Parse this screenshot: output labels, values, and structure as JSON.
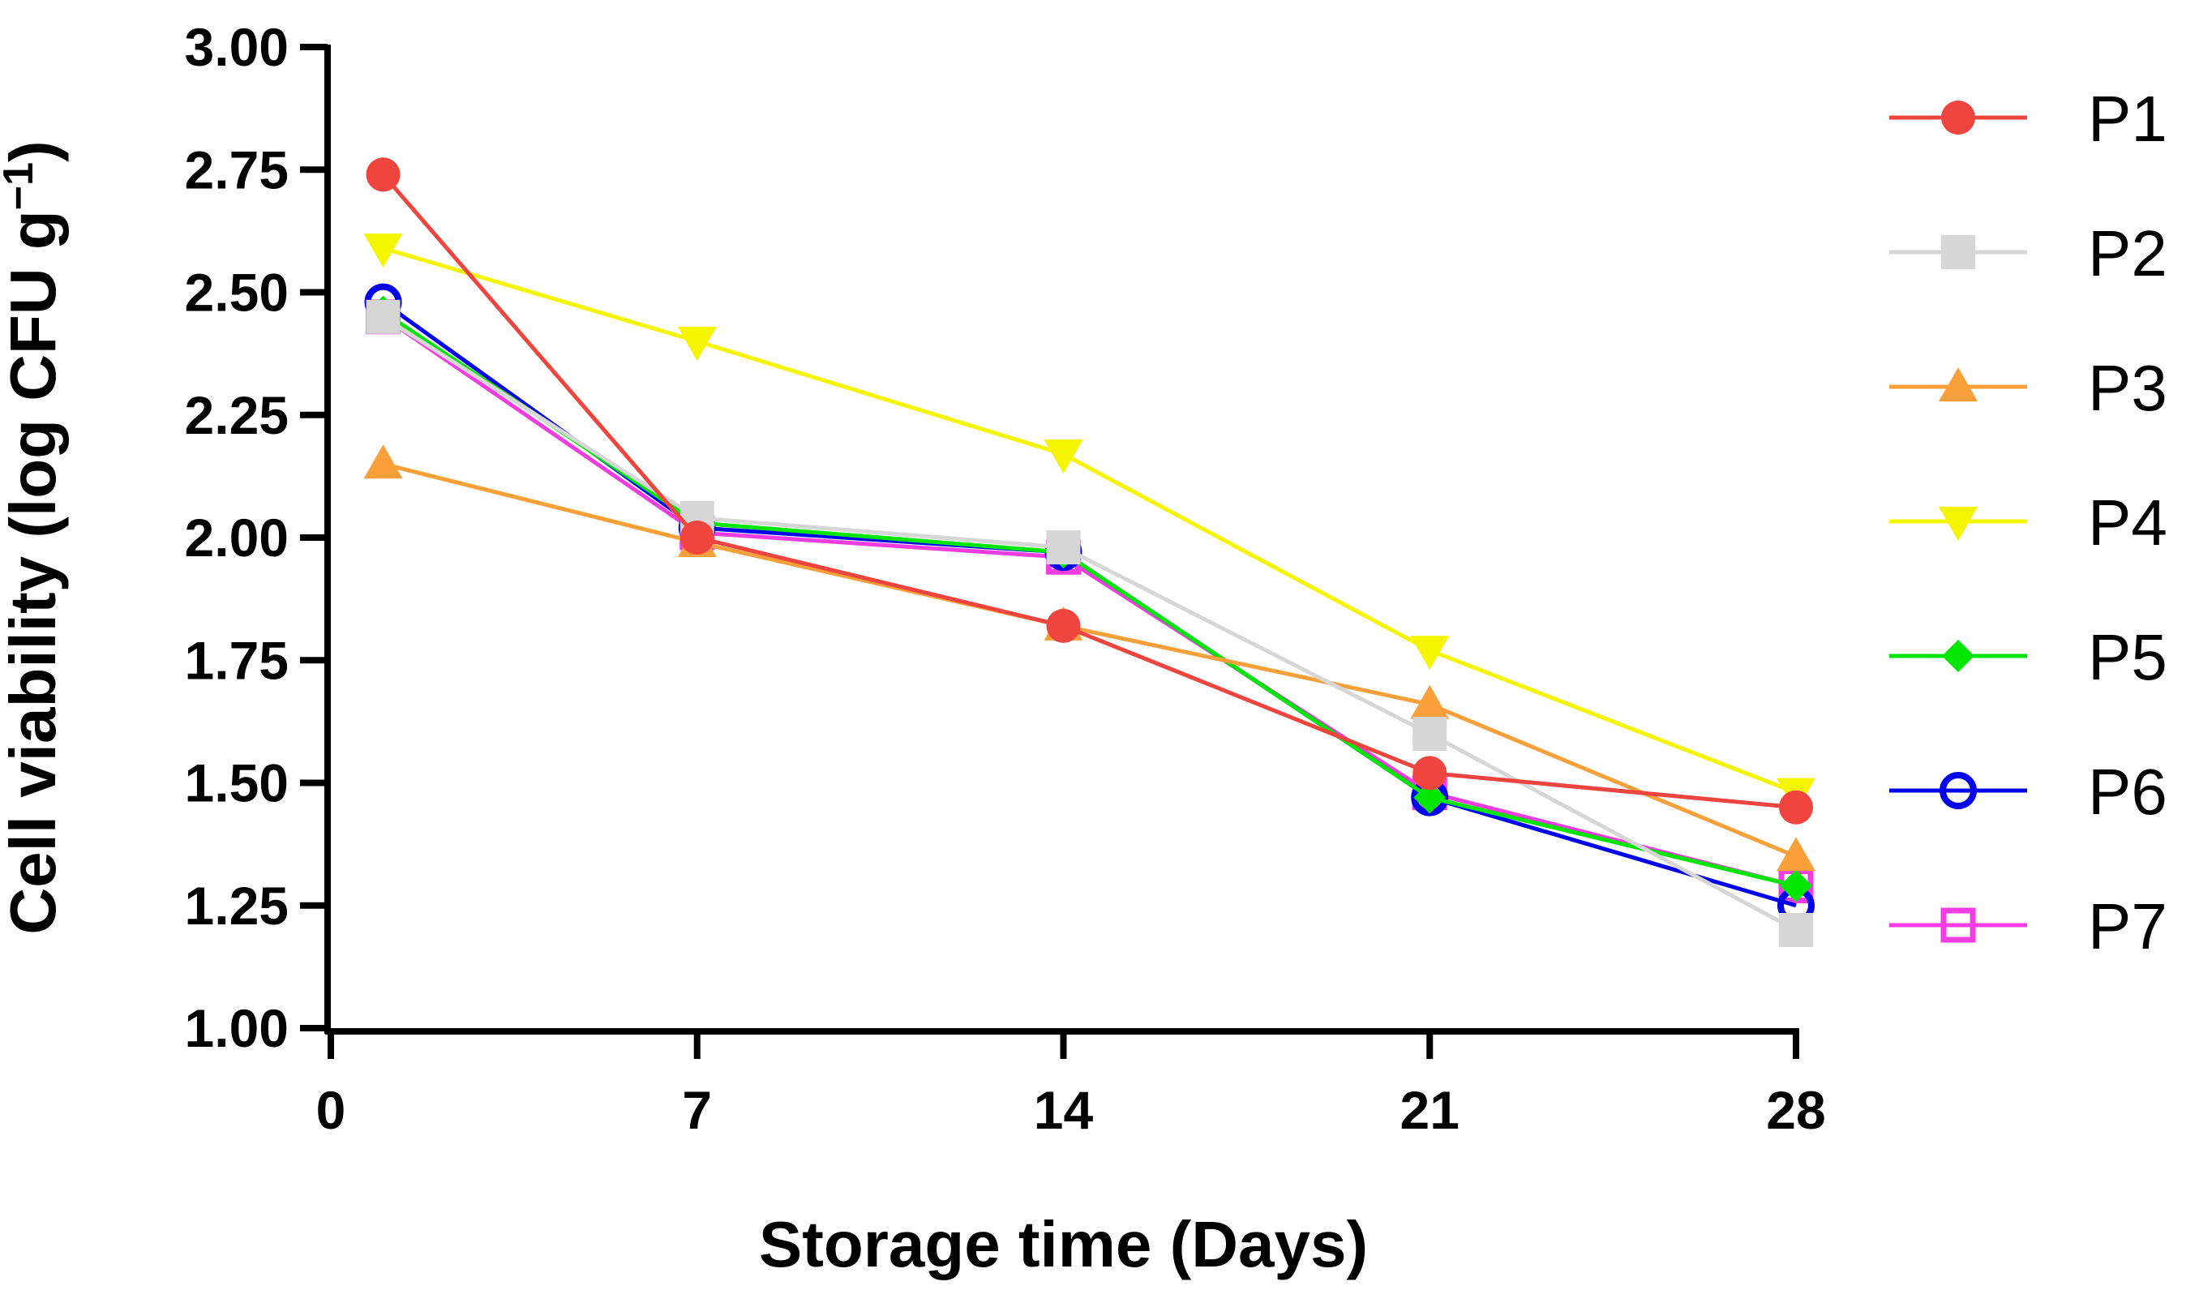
{
  "chart_data": {
    "type": "line",
    "title": "",
    "xlabel": "Storage time (Days)",
    "ylabel_main": "Cell viability (log CFU g",
    "ylabel_sup": "−1",
    "ylabel_close": ")",
    "xlim": [
      0,
      28
    ],
    "ylim": [
      1.0,
      3.0
    ],
    "xticks": [
      0,
      7,
      14,
      21,
      28
    ],
    "xtick_labels": [
      "0",
      "7",
      "14",
      "21",
      "28"
    ],
    "yticks": [
      1.0,
      1.25,
      1.5,
      1.75,
      2.0,
      2.25,
      2.5,
      2.75,
      3.0
    ],
    "ytick_labels": [
      "1.00",
      "1.25",
      "1.50",
      "1.75",
      "2.00",
      "2.25",
      "2.50",
      "2.75",
      "3.00"
    ],
    "x": [
      1,
      7,
      14,
      21,
      28
    ],
    "legend_position": "right",
    "series": [
      {
        "name": "P1",
        "color": "#F0443F",
        "marker": "circle-filled",
        "values": [
          2.74,
          2.0,
          1.82,
          1.52,
          1.45
        ]
      },
      {
        "name": "P2",
        "color": "#D6D6D6",
        "marker": "square-filled",
        "values": [
          2.45,
          2.04,
          1.98,
          1.6,
          1.2
        ]
      },
      {
        "name": "P3",
        "color": "#F9A03A",
        "marker": "triangle-up",
        "values": [
          2.15,
          1.99,
          1.82,
          1.66,
          1.35
        ]
      },
      {
        "name": "P4",
        "color": "#F5F500",
        "marker": "triangle-down",
        "values": [
          2.59,
          2.4,
          2.17,
          1.77,
          1.48
        ]
      },
      {
        "name": "P5",
        "color": "#00E600",
        "marker": "diamond-filled",
        "values": [
          2.46,
          2.03,
          1.97,
          1.47,
          1.29
        ]
      },
      {
        "name": "P6",
        "color": "#0000EE",
        "marker": "circle-open",
        "values": [
          2.48,
          2.02,
          1.97,
          1.47,
          1.25
        ]
      },
      {
        "name": "P7",
        "color": "#F03CE0",
        "marker": "square-open",
        "values": [
          2.45,
          2.01,
          1.96,
          1.48,
          1.29
        ]
      }
    ]
  }
}
